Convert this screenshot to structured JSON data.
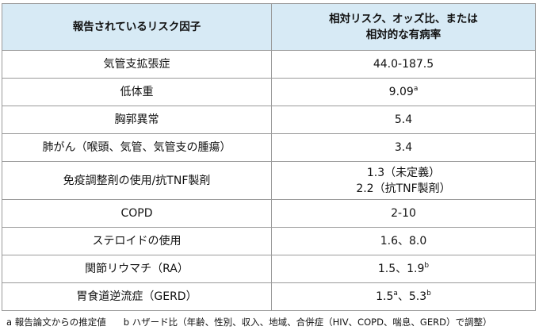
{
  "table": {
    "header": {
      "factor": "報告されているリスク因子",
      "value_lines": [
        "相対リスク、オッズ比、または",
        "相対的な有病率"
      ]
    },
    "rows": [
      {
        "factor": "気管支拡張症",
        "value_lines": [
          [
            {
              "text": "44.0-187.5"
            }
          ]
        ]
      },
      {
        "factor": "低体重",
        "value_lines": [
          [
            {
              "text": "9.09"
            },
            {
              "superscript": "a"
            }
          ]
        ]
      },
      {
        "factor": "胸郭異常",
        "value_lines": [
          [
            {
              "text": "5.4"
            }
          ]
        ]
      },
      {
        "factor": "肺がん（喉頭、気管、気管支の腫瘍）",
        "value_lines": [
          [
            {
              "text": "3.4"
            }
          ]
        ]
      },
      {
        "factor": "免疫調整剤の使用/抗TNF製剤",
        "value_lines": [
          [
            {
              "text": "1.3（未定義）"
            }
          ],
          [
            {
              "text": "2.2（抗TNF製剤）"
            }
          ]
        ]
      },
      {
        "factor": "COPD",
        "value_lines": [
          [
            {
              "text": "2-10"
            }
          ]
        ]
      },
      {
        "factor": "ステロイドの使用",
        "value_lines": [
          [
            {
              "text": "1.6、8.0"
            }
          ]
        ]
      },
      {
        "factor": "関節リウマチ（RA）",
        "value_lines": [
          [
            {
              "text": "1.5、1.9"
            },
            {
              "superscript": "b"
            }
          ]
        ]
      },
      {
        "factor": "胃食道逆流症（GERD）",
        "value_lines": [
          [
            {
              "text": "1.5"
            },
            {
              "superscript": "a"
            },
            {
              "text": "、5.3"
            },
            {
              "superscript": "b"
            }
          ]
        ]
      }
    ]
  },
  "footnotes": [
    "a 報告論文からの推定値",
    "b ハザード比（年齢、性別、収入、地域、合併症（HIV、COPD、喘息、GERD）で調整）"
  ]
}
